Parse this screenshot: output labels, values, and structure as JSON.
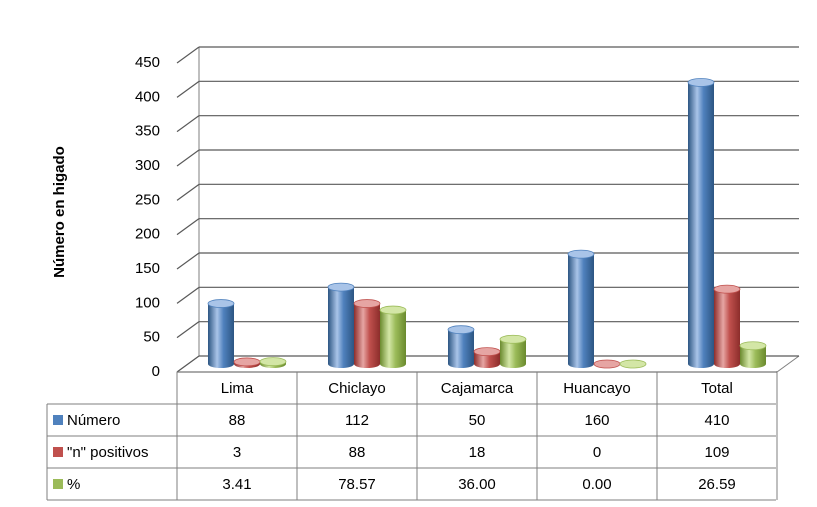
{
  "chart_data": {
    "type": "bar",
    "title": "",
    "xlabel": "",
    "ylabel": "Número en higado",
    "ylim": [
      0,
      450
    ],
    "yticks": [
      0,
      50,
      100,
      150,
      200,
      250,
      300,
      350,
      400,
      450
    ],
    "grid": true,
    "legend": "data-table-left",
    "categories": [
      "Lima",
      "Chiclayo",
      "Cajamarca",
      "Huancayo",
      "Total"
    ],
    "series": [
      {
        "name": "Número",
        "values": [
          88,
          112,
          50,
          160,
          410
        ],
        "labels": [
          "88",
          "112",
          "50",
          "160",
          "410"
        ],
        "color": "#4f81bd",
        "color_dark": "#2c5582",
        "color_light": "#a9c4e8"
      },
      {
        "name": "\"n\" positivos",
        "values": [
          3,
          88,
          18,
          0,
          109
        ],
        "labels": [
          "3",
          "88",
          "18",
          "0",
          "109"
        ],
        "color": "#c0504d",
        "color_dark": "#8c2d2b",
        "color_light": "#e6a5a3"
      },
      {
        "name": "%",
        "values": [
          3.41,
          78.57,
          36.0,
          0.0,
          26.59
        ],
        "labels": [
          "3.41",
          "78.57",
          "36.00",
          "0.00",
          "26.59"
        ],
        "color": "#9bbb59",
        "color_dark": "#6a8a2e",
        "color_light": "#d3e6a6"
      }
    ]
  }
}
